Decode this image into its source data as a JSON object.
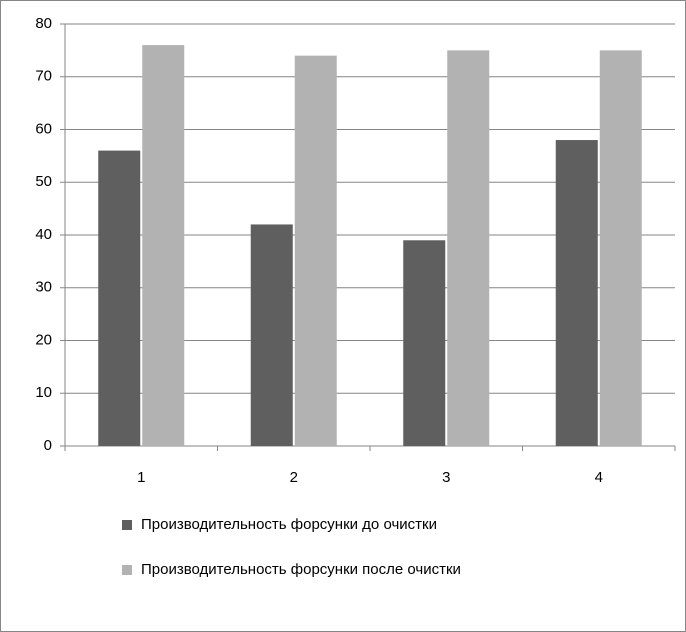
{
  "chart_data": {
    "type": "bar",
    "categories": [
      "1",
      "2",
      "3",
      "4"
    ],
    "series": [
      {
        "name": "Производительность форсунки до очистки",
        "color": "#5f5f5f",
        "values": [
          56,
          42,
          39,
          58
        ]
      },
      {
        "name": "Производительность форсунки после очистки",
        "color": "#b2b2b2",
        "values": [
          76,
          74,
          75,
          75
        ]
      }
    ],
    "ylim": [
      0,
      80
    ],
    "yticks": [
      0,
      10,
      20,
      30,
      40,
      50,
      60,
      70,
      80
    ],
    "grid": true,
    "legend": "bottom"
  }
}
